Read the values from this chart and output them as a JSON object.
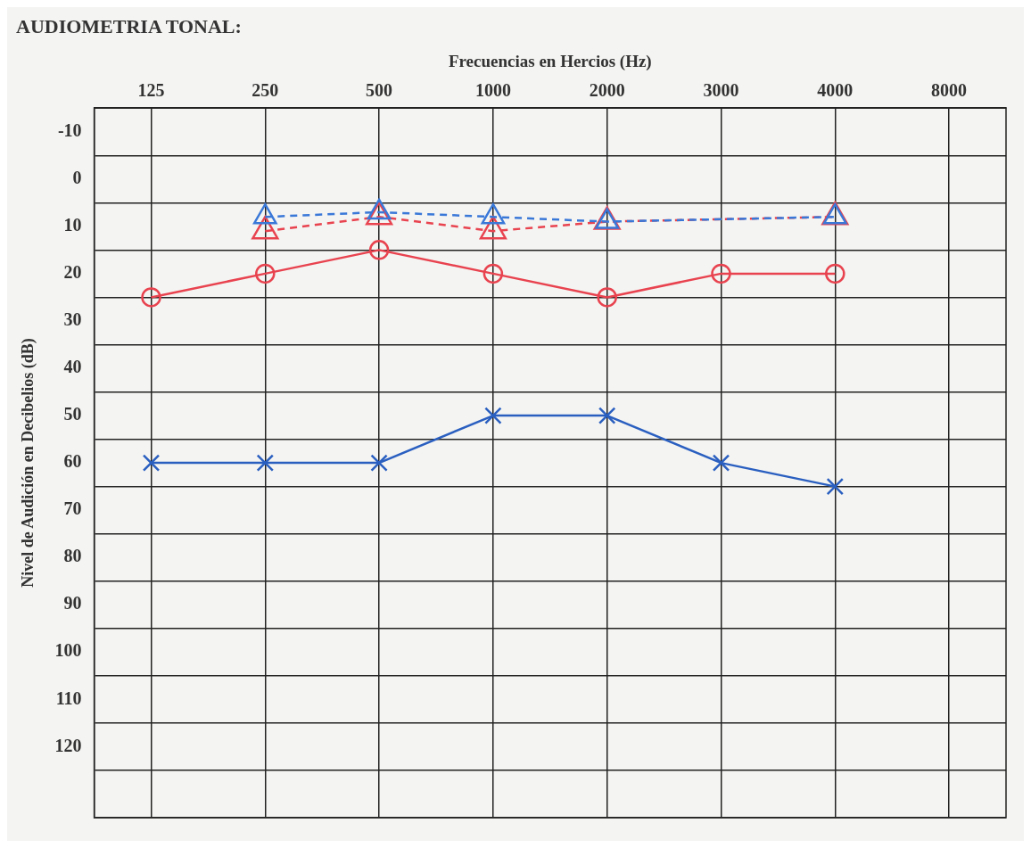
{
  "chart_data": {
    "type": "line",
    "title": "AUDIOMETRIA TONAL:",
    "xlabel": "Frecuencias en Hercios (Hz)",
    "ylabel": "Nivel de Audición en Decibelios (dB)",
    "categories": [
      "125",
      "250",
      "500",
      "1000",
      "2000",
      "3000",
      "4000",
      "8000"
    ],
    "series": [
      {
        "color": "#e8434f",
        "marker": "circle",
        "line_style": "solid",
        "values": [
          25,
          20,
          15,
          20,
          25,
          20,
          20,
          null
        ]
      },
      {
        "color": "#2a5fc0",
        "marker": "cross",
        "line_style": "solid",
        "values": [
          60,
          60,
          60,
          50,
          50,
          60,
          65,
          null
        ]
      },
      {
        "color": "#3a78d8",
        "marker": "triangle",
        "line_style": "dashed",
        "values": [
          null,
          8,
          7,
          8,
          9,
          null,
          8,
          null
        ]
      },
      {
        "color": "#e8434f",
        "marker": "triangle",
        "line_style": "dashed",
        "values": [
          null,
          11,
          8,
          11,
          9,
          null,
          8,
          null
        ]
      }
    ],
    "ylim": [
      135,
      -15
    ],
    "yticks": [
      {
        "value": -15,
        "label": null
      },
      -10,
      {
        "value": -5,
        "label": null
      },
      0,
      {
        "value": 5,
        "label": null
      },
      10,
      {
        "value": 15,
        "label": null
      },
      20,
      {
        "value": 25,
        "label": null
      },
      30,
      {
        "value": 35,
        "label": null
      },
      40,
      {
        "value": 45,
        "label": null
      },
      50,
      {
        "value": 55,
        "label": null
      },
      60,
      {
        "value": 65,
        "label": null
      },
      70,
      {
        "value": 75,
        "label": null
      },
      80,
      {
        "value": 85,
        "label": null
      },
      90,
      {
        "value": 95,
        "label": null
      },
      100,
      {
        "value": 105,
        "label": null
      },
      110,
      {
        "value": 115,
        "label": null
      },
      120,
      {
        "value": 125,
        "label": null
      },
      {
        "value": 135,
        "label": null
      }
    ],
    "grid": true,
    "legend": false
  }
}
